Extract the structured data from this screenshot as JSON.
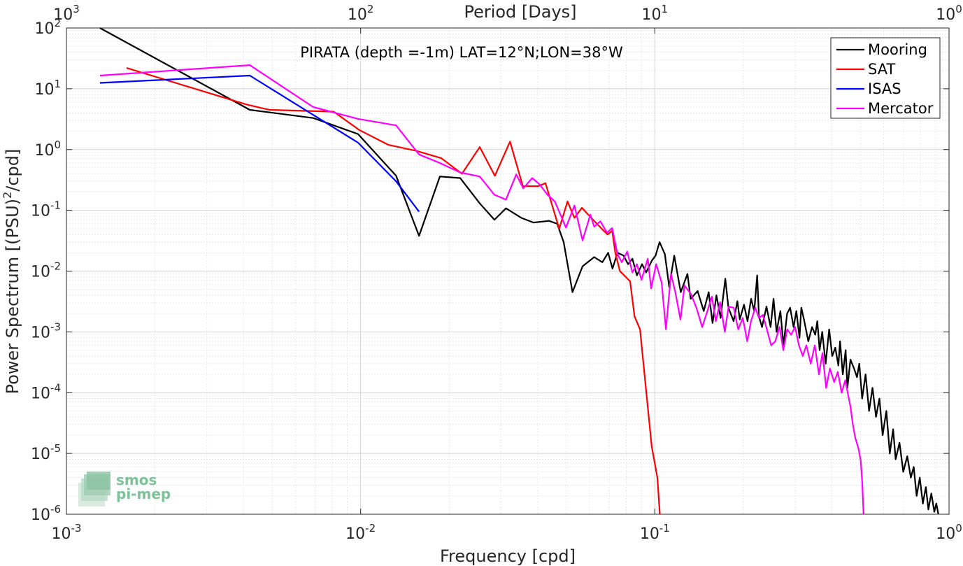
{
  "chart_data": {
    "type": "line",
    "title": "PIRATA (depth =-1m) LAT=12°N;LON=38°W",
    "xlabel": "Frequency [cpd]",
    "ylabel": "Power Spectrum [(PSU)",
    "ylabel_sup": "2",
    "ylabel_tail": "/cpd]",
    "x2label": "Period [Days]",
    "x_scale": "log",
    "y_scale": "log",
    "xlim": [
      0.001,
      1
    ],
    "ylim": [
      1e-06,
      100
    ],
    "grid": true,
    "legend_position": "top-right",
    "x_ticks": [
      {
        "value": 0.001,
        "base": "10",
        "exp": "-3"
      },
      {
        "value": 0.01,
        "base": "10",
        "exp": "-2"
      },
      {
        "value": 0.1,
        "base": "10",
        "exp": "-1"
      },
      {
        "value": 1,
        "base": "10",
        "exp": "0"
      }
    ],
    "x2_ticks": [
      {
        "value": 0.001,
        "base": "10",
        "exp": "3"
      },
      {
        "value": 0.01,
        "base": "10",
        "exp": "2"
      },
      {
        "value": 0.1,
        "base": "10",
        "exp": "1"
      },
      {
        "value": 1,
        "base": "10",
        "exp": "0"
      }
    ],
    "y_ticks": [
      {
        "value": 100,
        "base": "10",
        "exp": "2"
      },
      {
        "value": 10,
        "base": "10",
        "exp": "1"
      },
      {
        "value": 1,
        "base": "10",
        "exp": "0"
      },
      {
        "value": 0.1,
        "base": "10",
        "exp": "-1"
      },
      {
        "value": 0.01,
        "base": "10",
        "exp": "-2"
      },
      {
        "value": 0.001,
        "base": "10",
        "exp": "-3"
      },
      {
        "value": 0.0001,
        "base": "10",
        "exp": "-4"
      },
      {
        "value": 1e-05,
        "base": "10",
        "exp": "-5"
      },
      {
        "value": 1e-06,
        "base": "10",
        "exp": "-6"
      }
    ],
    "series": [
      {
        "name": "Mooring",
        "color": "#000000",
        "points": [
          [
            0.0013,
            100
          ],
          [
            0.0042,
            4.5
          ],
          [
            0.0069,
            3.3
          ],
          [
            0.0098,
            1.8
          ],
          [
            0.0132,
            0.37
          ],
          [
            0.0158,
            0.038
          ],
          [
            0.0186,
            0.36
          ],
          [
            0.0218,
            0.34
          ],
          [
            0.0254,
            0.13
          ],
          [
            0.0285,
            0.07
          ],
          [
            0.0312,
            0.108
          ],
          [
            0.0352,
            0.075
          ],
          [
            0.0387,
            0.063
          ],
          [
            0.0437,
            0.067
          ],
          [
            0.0466,
            0.06
          ],
          [
            0.049,
            0.03
          ],
          [
            0.0525,
            0.0045
          ],
          [
            0.0568,
            0.012
          ],
          [
            0.0622,
            0.017
          ],
          [
            0.0663,
            0.014
          ],
          [
            0.0694,
            0.02
          ],
          [
            0.0718,
            0.011
          ],
          [
            0.0747,
            0.02
          ],
          [
            0.0783,
            0.018
          ],
          [
            0.0811,
            0.013
          ],
          [
            0.0839,
            0.016
          ],
          [
            0.0869,
            0.0085
          ],
          [
            0.0905,
            0.013
          ],
          [
            0.0934,
            0.0095
          ],
          [
            0.0978,
            0.015
          ],
          [
            0.1006,
            0.018
          ],
          [
            0.1038,
            0.03
          ],
          [
            0.1082,
            0.019
          ],
          [
            0.1119,
            0.0055
          ],
          [
            0.1164,
            0.018
          ],
          [
            0.1225,
            0.0045
          ],
          [
            0.1291,
            0.009
          ],
          [
            0.1324,
            0.0035
          ],
          [
            0.1398,
            0.0047
          ],
          [
            0.1467,
            0.0022
          ],
          [
            0.1524,
            0.0045
          ],
          [
            0.1571,
            0.0014
          ],
          [
            0.1619,
            0.004
          ],
          [
            0.1673,
            0.0017
          ],
          [
            0.1736,
            0.0075
          ],
          [
            0.1779,
            0.0025
          ],
          [
            0.1853,
            0.0015
          ],
          [
            0.1908,
            0.0032
          ],
          [
            0.1944,
            0.0016
          ],
          [
            0.2009,
            0.0028
          ],
          [
            0.2066,
            0.0015
          ],
          [
            0.2125,
            0.0035
          ],
          [
            0.2177,
            0.0022
          ],
          [
            0.2228,
            0.0085
          ],
          [
            0.2259,
            0.0018
          ],
          [
            0.2314,
            0.0012
          ],
          [
            0.2397,
            0.0026
          ],
          [
            0.2475,
            0.0012
          ],
          [
            0.2533,
            0.0035
          ],
          [
            0.2593,
            0.001
          ],
          [
            0.2672,
            0.0022
          ],
          [
            0.2737,
            0.0006
          ],
          [
            0.2816,
            0.002
          ],
          [
            0.2884,
            0.0025
          ],
          [
            0.2964,
            0.0012
          ],
          [
            0.3028,
            0.0022
          ],
          [
            0.3102,
            0.0008
          ],
          [
            0.3148,
            0.0025
          ],
          [
            0.3213,
            0.0016
          ],
          [
            0.3324,
            0.0007
          ],
          [
            0.3425,
            0.0012
          ],
          [
            0.3509,
            0.0009
          ],
          [
            0.3567,
            0.0015
          ],
          [
            0.3632,
            0.0005
          ],
          [
            0.3706,
            0.001
          ],
          [
            0.3808,
            0.0003
          ],
          [
            0.3913,
            0.0011
          ],
          [
            0.4008,
            0.0004
          ],
          [
            0.4106,
            0.00055
          ],
          [
            0.4207,
            0.00028
          ],
          [
            0.4262,
            0.0007
          ],
          [
            0.4354,
            0.0002
          ],
          [
            0.4453,
            0.0005
          ],
          [
            0.4514,
            0.00012
          ],
          [
            0.4625,
            0.00035
          ],
          [
            0.4755,
            0.00025
          ],
          [
            0.4867,
            0.00018
          ],
          [
            0.4954,
            0.0003
          ],
          [
            0.5067,
            8e-05
          ],
          [
            0.5206,
            0.0002
          ],
          [
            0.5349,
            5e-05
          ],
          [
            0.5495,
            0.00012
          ],
          [
            0.5646,
            4e-05
          ],
          [
            0.5801,
            8e-05
          ],
          [
            0.5947,
            2e-05
          ],
          [
            0.6123,
            5e-05
          ],
          [
            0.6289,
            1e-05
          ],
          [
            0.6456,
            2.5e-05
          ],
          [
            0.6585,
            8e-06
          ],
          [
            0.6786,
            1.5e-05
          ],
          [
            0.6989,
            5e-06
          ],
          [
            0.7211,
            9e-06
          ],
          [
            0.7417,
            4e-06
          ],
          [
            0.7586,
            6e-06
          ],
          [
            0.7762,
            2e-06
          ],
          [
            0.7957,
            4e-06
          ],
          [
            0.8147,
            1.5e-06
          ],
          [
            0.8343,
            2.8e-06
          ],
          [
            0.8511,
            1.2e-06
          ],
          [
            0.8709,
            2.2e-06
          ],
          [
            0.8913,
            1.1e-06
          ],
          [
            0.905,
            1.5e-06
          ],
          [
            0.92,
            1e-06
          ]
        ]
      },
      {
        "name": "SAT",
        "color": "#ff0000",
        "points": [
          [
            0.0016,
            22
          ],
          [
            0.0041,
            5.5
          ],
          [
            0.0049,
            4.5
          ],
          [
            0.0081,
            4.2
          ],
          [
            0.0099,
            2.1
          ],
          [
            0.0124,
            1.2
          ],
          [
            0.0155,
            0.95
          ],
          [
            0.0188,
            0.72
          ],
          [
            0.0221,
            0.4
          ],
          [
            0.0254,
            1.1
          ],
          [
            0.0286,
            0.37
          ],
          [
            0.0322,
            1.35
          ],
          [
            0.0356,
            0.25
          ],
          [
            0.0401,
            0.25
          ],
          [
            0.0425,
            0.28
          ],
          [
            0.0473,
            0.05
          ],
          [
            0.0505,
            0.14
          ],
          [
            0.0533,
            0.075
          ],
          [
            0.0565,
            0.11
          ],
          [
            0.0607,
            0.076
          ],
          [
            0.0654,
            0.052
          ],
          [
            0.0691,
            0.04
          ],
          [
            0.0716,
            0.046
          ],
          [
            0.0734,
            0.02
          ],
          [
            0.0761,
            0.01
          ],
          [
            0.0824,
            0.0068
          ],
          [
            0.0853,
            0.0018
          ],
          [
            0.0891,
            0.0011
          ],
          [
            0.0932,
            0.00012
          ],
          [
            0.0976,
            1.3e-05
          ],
          [
            0.102,
            4e-06
          ],
          [
            0.104,
            1e-06
          ]
        ]
      },
      {
        "name": "ISAS",
        "color": "#0000ff",
        "points": [
          [
            0.0013,
            12.5
          ],
          [
            0.0042,
            16.5
          ],
          [
            0.0098,
            1.3
          ],
          [
            0.0132,
            0.3
          ],
          [
            0.0158,
            0.095
          ]
        ]
      },
      {
        "name": "Mercator",
        "color": "#ff00ff",
        "points": [
          [
            0.0013,
            16.5
          ],
          [
            0.0042,
            24.5
          ],
          [
            0.0069,
            5.0
          ],
          [
            0.0098,
            3.2
          ],
          [
            0.0132,
            2.5
          ],
          [
            0.0158,
            0.83
          ],
          [
            0.0186,
            0.6
          ],
          [
            0.0218,
            0.42
          ],
          [
            0.0254,
            0.36
          ],
          [
            0.0285,
            0.18
          ],
          [
            0.0312,
            0.15
          ],
          [
            0.0338,
            0.39
          ],
          [
            0.0357,
            0.23
          ],
          [
            0.0383,
            0.34
          ],
          [
            0.0405,
            0.27
          ],
          [
            0.0432,
            0.18
          ],
          [
            0.0457,
            0.14
          ],
          [
            0.0473,
            0.095
          ],
          [
            0.0499,
            0.052
          ],
          [
            0.0533,
            0.12
          ],
          [
            0.0568,
            0.032
          ],
          [
            0.0604,
            0.085
          ],
          [
            0.0622,
            0.054
          ],
          [
            0.0653,
            0.066
          ],
          [
            0.0688,
            0.043
          ],
          [
            0.0716,
            0.051
          ],
          [
            0.0747,
            0.019
          ],
          [
            0.0772,
            0.014
          ],
          [
            0.0806,
            0.021
          ],
          [
            0.0839,
            0.0095
          ],
          [
            0.0869,
            0.013
          ],
          [
            0.0901,
            0.0072
          ],
          [
            0.0946,
            0.016
          ],
          [
            0.0972,
            0.0052
          ],
          [
            0.1011,
            0.013
          ],
          [
            0.1055,
            0.0065
          ],
          [
            0.1091,
            0.0011
          ],
          [
            0.1135,
            0.009
          ],
          [
            0.1175,
            0.0044
          ],
          [
            0.1222,
            0.0016
          ],
          [
            0.1262,
            0.0058
          ],
          [
            0.1326,
            0.0042
          ],
          [
            0.1385,
            0.0025
          ],
          [
            0.1449,
            0.0012
          ],
          [
            0.1509,
            0.0022
          ],
          [
            0.1563,
            0.0038
          ],
          [
            0.1612,
            0.0015
          ],
          [
            0.1667,
            0.0031
          ],
          [
            0.1729,
            0.001
          ],
          [
            0.1781,
            0.0026
          ],
          [
            0.1855,
            0.0025
          ],
          [
            0.1921,
            0.0011
          ],
          [
            0.1991,
            0.0017
          ],
          [
            0.2061,
            0.0007
          ],
          [
            0.2123,
            0.0015
          ],
          [
            0.2196,
            0.0025
          ],
          [
            0.2259,
            0.0017
          ],
          [
            0.2329,
            0.0019
          ],
          [
            0.2404,
            0.0011
          ],
          [
            0.2486,
            0.0006
          ],
          [
            0.2567,
            0.0007
          ],
          [
            0.2655,
            0.0012
          ],
          [
            0.2734,
            0.0005
          ],
          [
            0.2818,
            0.0011
          ],
          [
            0.2905,
            0.0009
          ],
          [
            0.2997,
            0.0012
          ],
          [
            0.3089,
            0.0006
          ],
          [
            0.3183,
            0.0004
          ],
          [
            0.3273,
            0.0006
          ],
          [
            0.3389,
            0.0003
          ],
          [
            0.3498,
            0.0006
          ],
          [
            0.3612,
            0.0002
          ],
          [
            0.3715,
            0.00045
          ],
          [
            0.3823,
            0.00012
          ],
          [
            0.3938,
            0.00025
          ],
          [
            0.4071,
            0.00015
          ],
          [
            0.4189,
            0.00022
          ],
          [
            0.4316,
            0.0001
          ],
          [
            0.4438,
            0.00016
          ],
          [
            0.4543,
            9e-05
          ],
          [
            0.4621,
            6e-05
          ],
          [
            0.4712,
            3e-05
          ],
          [
            0.4802,
            1.8e-05
          ],
          [
            0.4925,
            1.2e-05
          ],
          [
            0.5012,
            7.5e-06
          ],
          [
            0.5068,
            3.5e-06
          ],
          [
            0.5105,
            1.5e-06
          ],
          [
            0.5124,
            1e-06
          ]
        ]
      }
    ]
  }
}
